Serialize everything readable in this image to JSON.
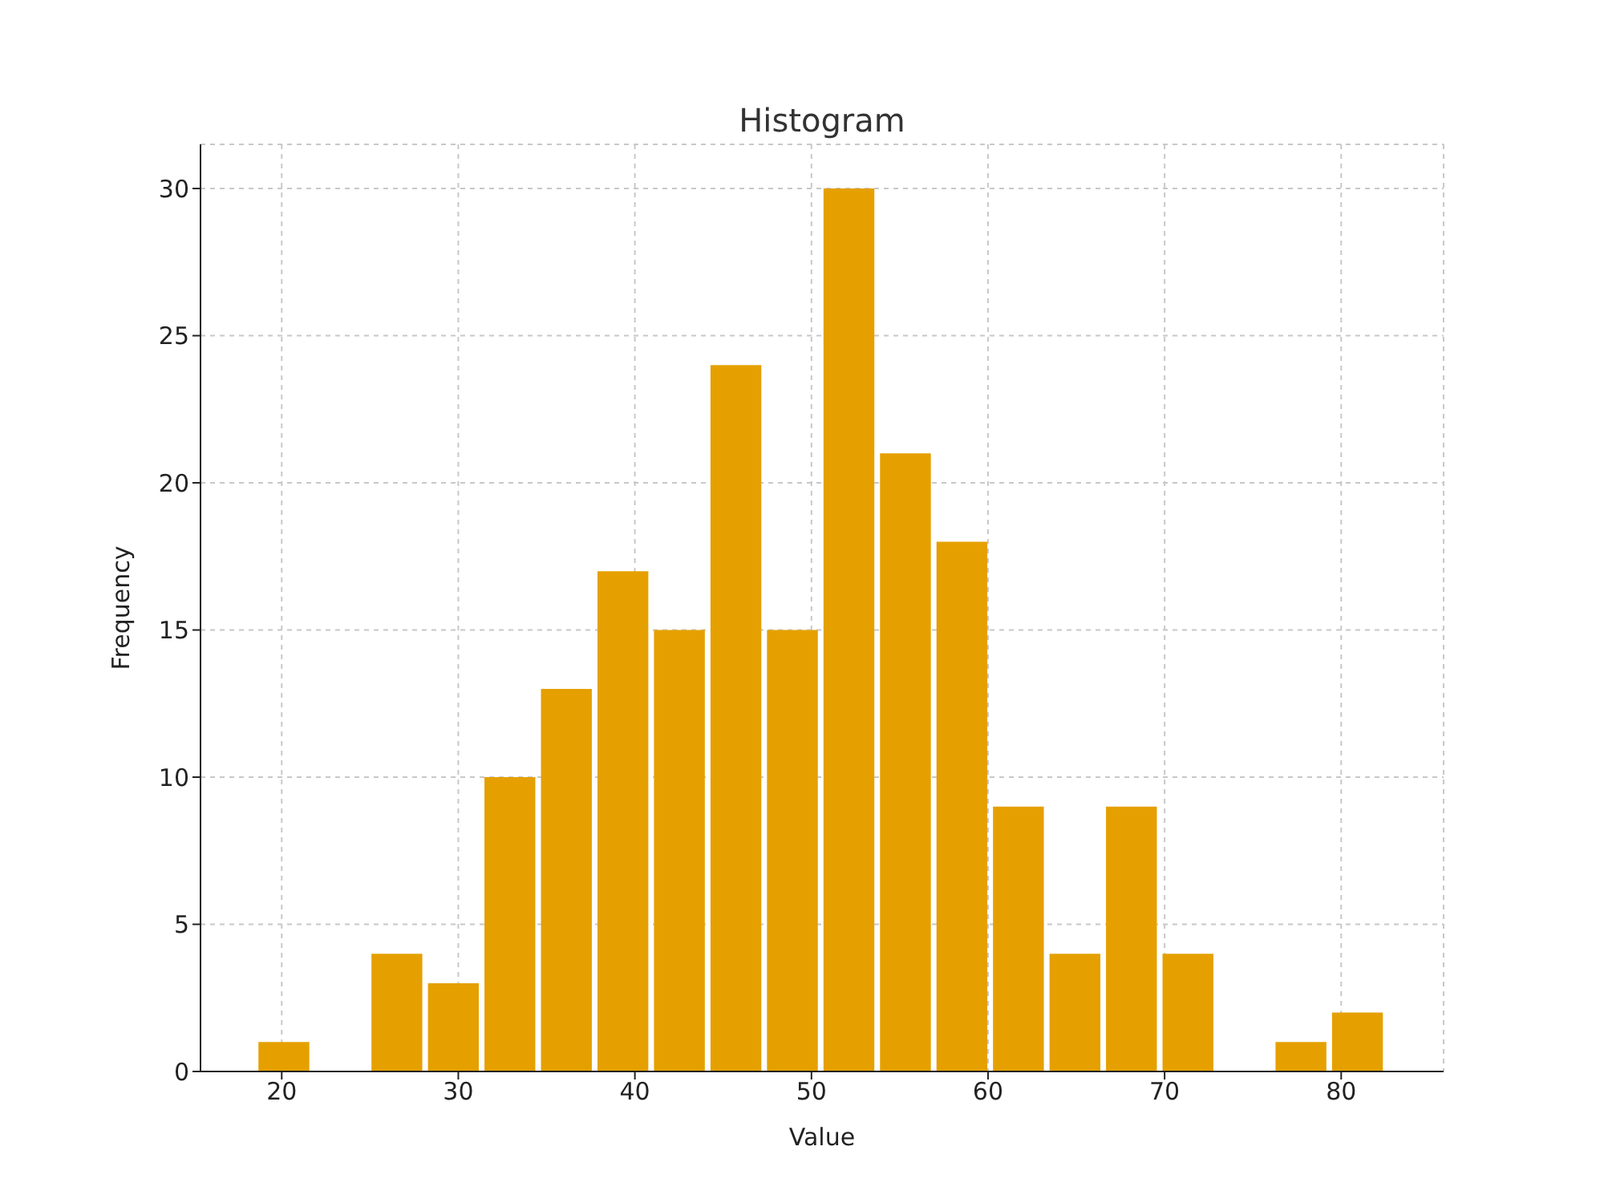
{
  "chart_data": {
    "type": "histogram",
    "title": "Histogram",
    "xlabel": "Value",
    "ylabel": "Frequency",
    "bins": [
      18.5,
      21.7,
      24.9,
      28.1,
      31.3,
      34.5,
      37.7,
      40.9,
      44.1,
      47.3,
      50.5,
      53.7,
      56.9,
      60.1,
      63.3,
      66.5,
      69.7,
      72.9,
      76.1,
      79.3,
      82.5
    ],
    "values": [
      1,
      0,
      4,
      3,
      10,
      13,
      17,
      15,
      24,
      15,
      30,
      21,
      18,
      9,
      4,
      9,
      4,
      0,
      1,
      2
    ],
    "color": "#e5a000",
    "xlim": [
      15.4,
      85.8
    ],
    "xticks": [
      20,
      30,
      40,
      50,
      60,
      70,
      80
    ],
    "ylim": [
      0,
      31.5
    ],
    "yticks": [
      0,
      5,
      10,
      15,
      20,
      25,
      30
    ],
    "grid": true,
    "legend": false
  }
}
